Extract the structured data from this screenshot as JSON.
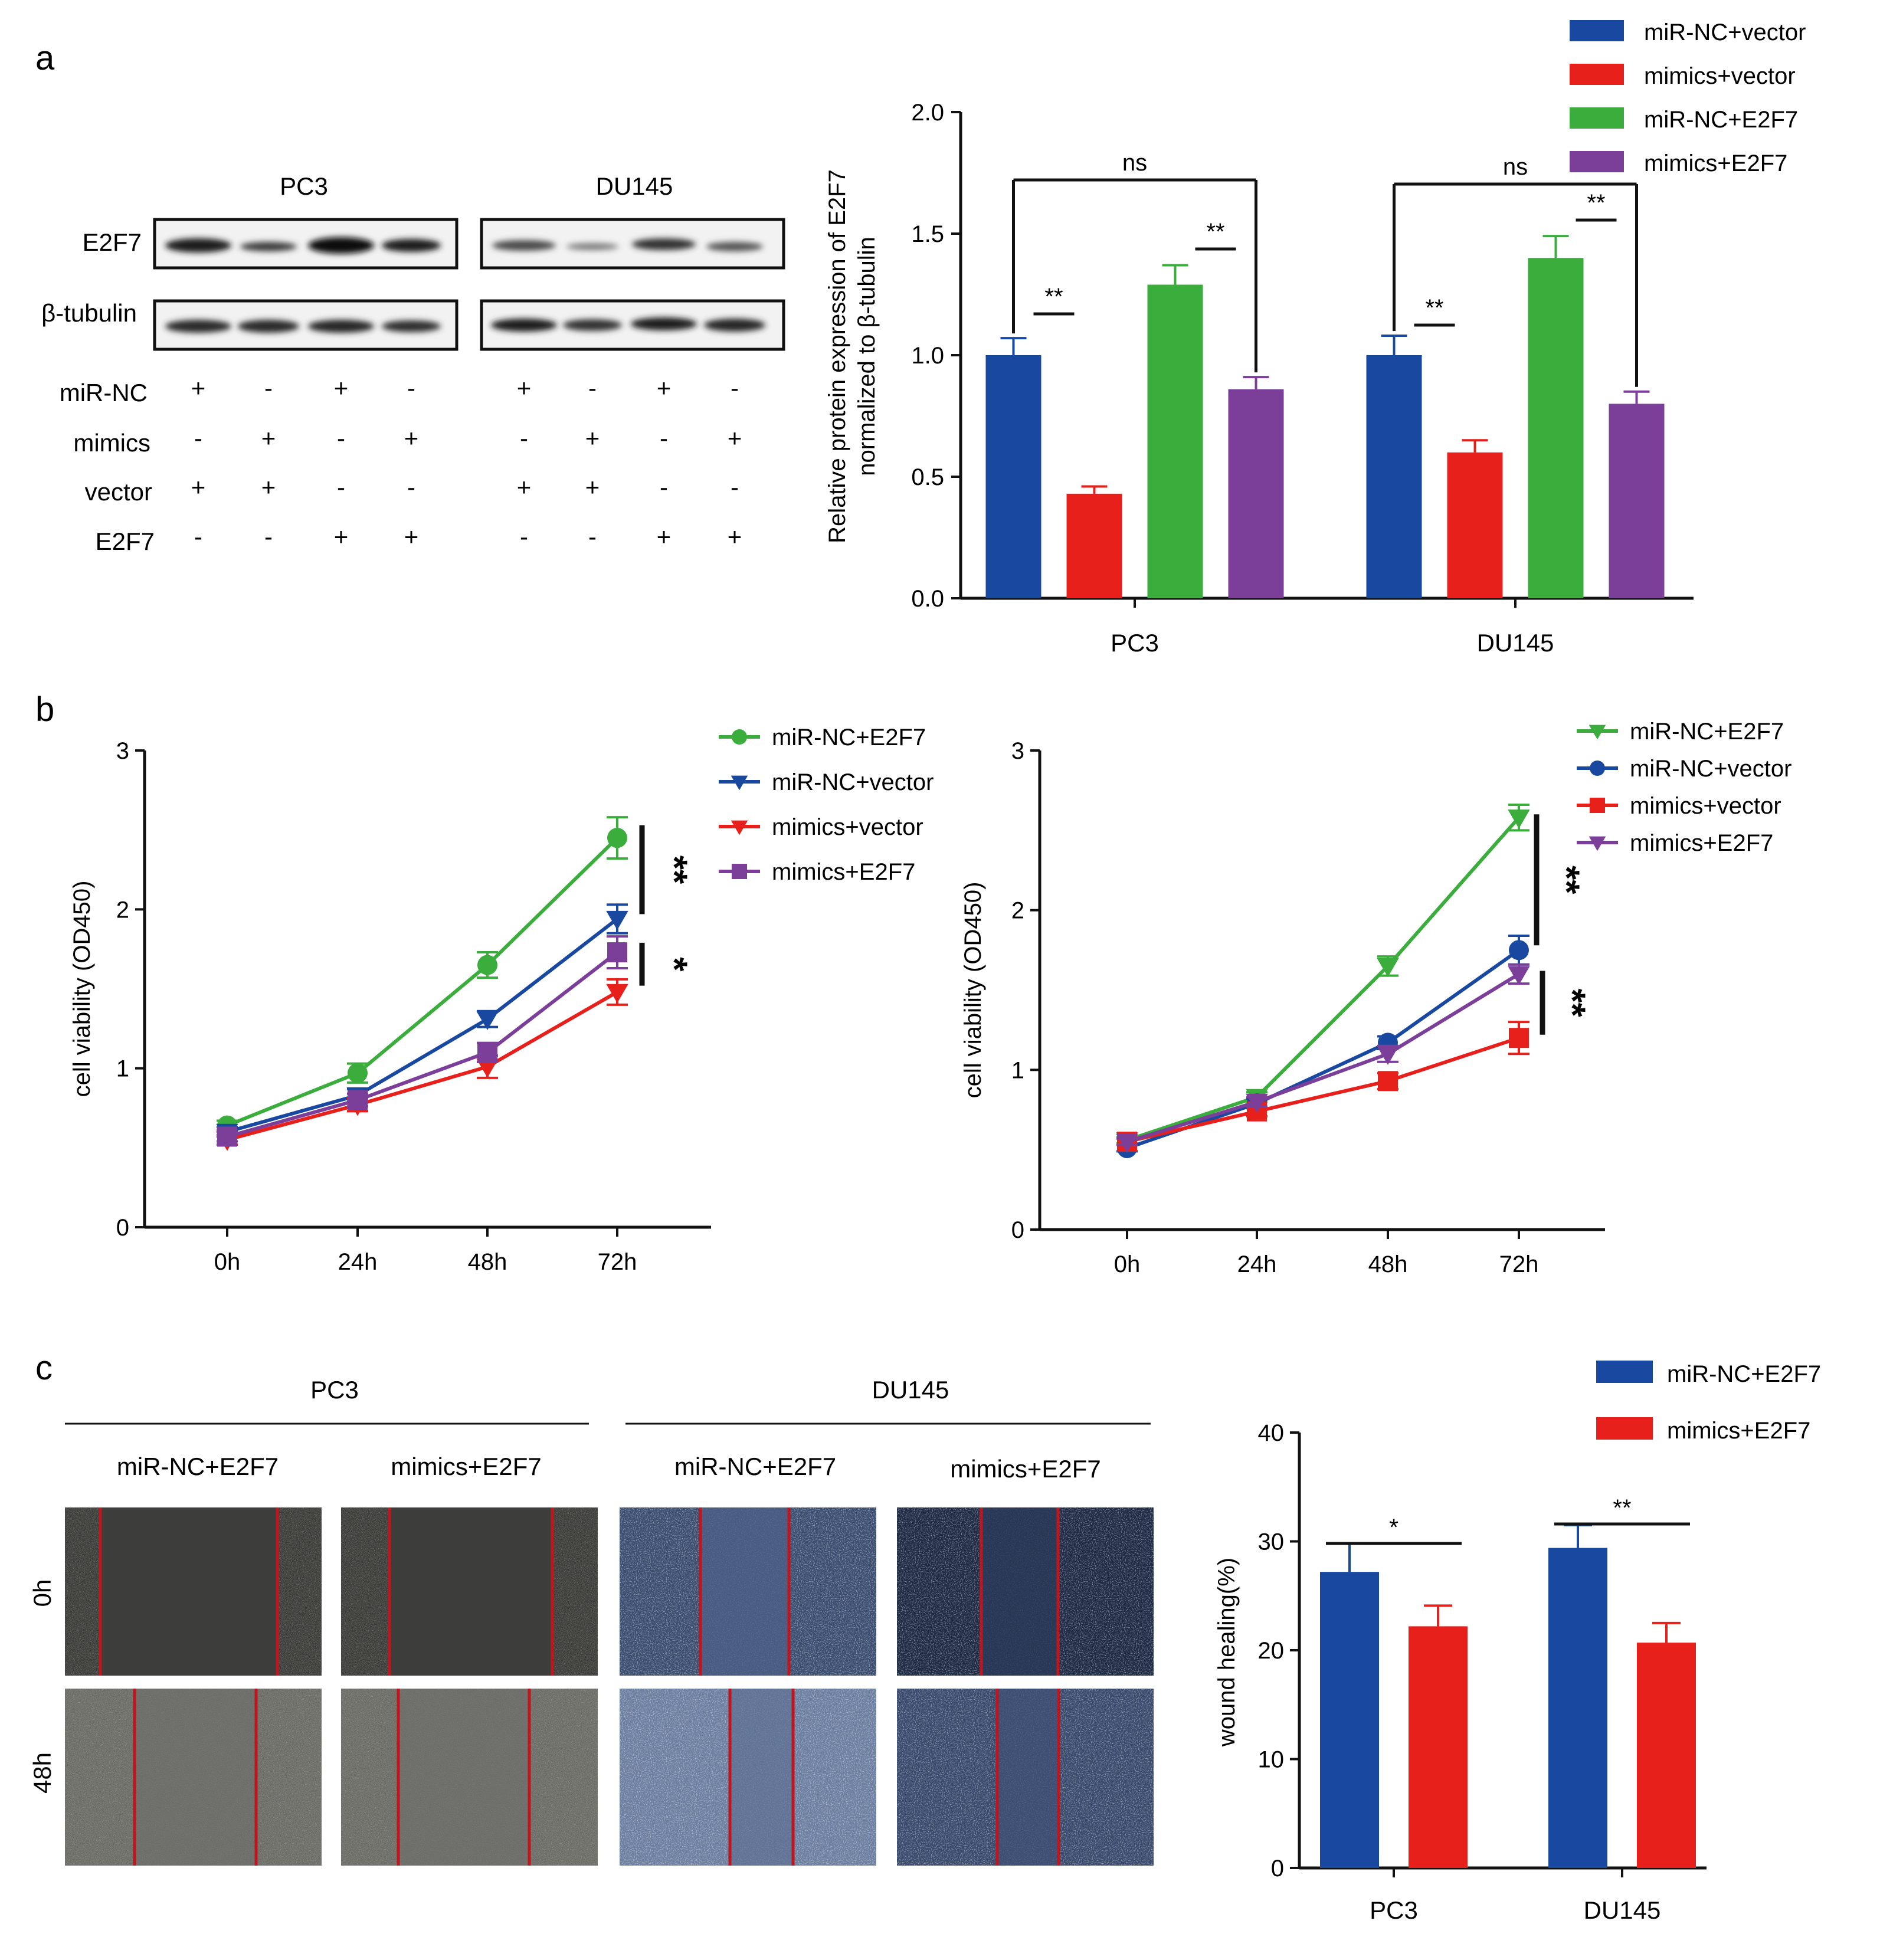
{
  "colors": {
    "blue": "#1848a0",
    "red": "#e8201c",
    "green": "#3aad3c",
    "purple": "#7c3f99",
    "axis": "#111111"
  },
  "panels": {
    "a": "a",
    "b": "b",
    "c": "c"
  },
  "blot": {
    "cells": [
      "PC3",
      "DU145"
    ],
    "proteins": [
      "E2F7",
      "β-tubulin"
    ],
    "rows": [
      {
        "label": "miR-NC",
        "signs": [
          "+",
          "-",
          "+",
          "-",
          "+",
          "-",
          "+",
          "-"
        ]
      },
      {
        "label": "mimics",
        "signs": [
          "-",
          "+",
          "-",
          "+",
          "-",
          "+",
          "-",
          "+"
        ]
      },
      {
        "label": "vector",
        "signs": [
          "+",
          "+",
          "-",
          "-",
          "+",
          "+",
          "-",
          "-"
        ]
      },
      {
        "label": "E2F7",
        "signs": [
          "-",
          "-",
          "+",
          "+",
          "-",
          "-",
          "+",
          "+"
        ]
      }
    ]
  },
  "scratch": {
    "cells": [
      "PC3",
      "DU145"
    ],
    "groups": [
      "miR-NC+E2F7",
      "mimics+E2F7",
      "miR-NC+E2F7",
      "mimics+E2F7"
    ],
    "times": [
      "0h",
      "48h"
    ]
  },
  "chart_data": [
    {
      "id": "a",
      "type": "bar",
      "ylabel": "Relative protein expression of E2F7 normalized to β-tubulin",
      "ylabel_lines": [
        "Relative protein expression of E2F7",
        "normalized to β-tubulin"
      ],
      "ylim": [
        0,
        2.0
      ],
      "yticks": [
        "0.0",
        "0.5",
        "1.0",
        "1.5",
        "2.0"
      ],
      "categories": [
        "PC3",
        "DU145"
      ],
      "series": [
        {
          "name": "miR-NC+vector",
          "color": "#1848a0",
          "values": [
            1.0,
            1.0
          ],
          "errors": [
            0.07,
            0.08
          ]
        },
        {
          "name": "mimics+vector",
          "color": "#e8201c",
          "values": [
            0.43,
            0.6
          ],
          "errors": [
            0.03,
            0.05
          ]
        },
        {
          "name": "miR-NC+E2F7",
          "color": "#3aad3c",
          "values": [
            1.29,
            1.4
          ],
          "errors": [
            0.08,
            0.09
          ]
        },
        {
          "name": "mimics+E2F7",
          "color": "#7c3f99",
          "values": [
            0.86,
            0.8
          ],
          "errors": [
            0.05,
            0.05
          ]
        }
      ],
      "annotations": [
        {
          "category": "PC3",
          "from": "miR-NC+vector",
          "to": "mimics+E2F7",
          "text": "ns"
        },
        {
          "category": "PC3",
          "from": "miR-NC+vector",
          "to": "mimics+vector",
          "text": "**"
        },
        {
          "category": "PC3",
          "from": "miR-NC+E2F7",
          "to": "mimics+E2F7",
          "text": "**"
        },
        {
          "category": "DU145",
          "from": "miR-NC+vector",
          "to": "mimics+E2F7",
          "text": "ns"
        },
        {
          "category": "DU145",
          "from": "miR-NC+vector",
          "to": "mimics+vector",
          "text": "**"
        },
        {
          "category": "DU145",
          "from": "miR-NC+E2F7",
          "to": "mimics+E2F7",
          "text": "**"
        }
      ]
    },
    {
      "id": "b-left",
      "type": "line",
      "ylabel": "cell viability (OD450)",
      "ylim": [
        0,
        3
      ],
      "yticks": [
        "0",
        "1",
        "2",
        "3"
      ],
      "x": [
        "0h",
        "24h",
        "48h",
        "72h"
      ],
      "legend_order": [
        "miR-NC+E2F7",
        "miR-NC+vector",
        "mimics+vector",
        "mimics+E2F7"
      ],
      "series": [
        {
          "name": "miR-NC+E2F7",
          "color": "#3aad3c",
          "marker": "circle",
          "values": [
            0.64,
            0.97,
            1.65,
            2.45
          ],
          "errors": [
            0.03,
            0.06,
            0.08,
            0.13
          ]
        },
        {
          "name": "miR-NC+vector",
          "color": "#1848a0",
          "marker": "triangle-down",
          "values": [
            0.6,
            0.83,
            1.31,
            1.94
          ],
          "errors": [
            0.03,
            0.04,
            0.05,
            0.09
          ]
        },
        {
          "name": "mimics+vector",
          "color": "#e8201c",
          "marker": "triangle-down",
          "values": [
            0.55,
            0.77,
            1.01,
            1.48
          ],
          "errors": [
            0.03,
            0.04,
            0.07,
            0.08
          ]
        },
        {
          "name": "mimics+E2F7",
          "color": "#7c3f99",
          "marker": "square",
          "values": [
            0.57,
            0.8,
            1.1,
            1.73
          ],
          "errors": [
            0.03,
            0.04,
            0.06,
            0.1
          ]
        }
      ],
      "significance": [
        {
          "from": 2.53,
          "to": 1.97,
          "text": "**"
        },
        {
          "from": 1.79,
          "to": 1.52,
          "text": "*"
        }
      ]
    },
    {
      "id": "b-right",
      "type": "line",
      "ylabel": "cell viability (OD450)",
      "ylim": [
        0,
        3
      ],
      "yticks": [
        "0",
        "1",
        "2",
        "3"
      ],
      "x": [
        "0h",
        "24h",
        "48h",
        "72h"
      ],
      "legend_order": [
        "miR-NC+E2F7",
        "miR-NC+vector",
        "mimics+vector",
        "mimics+E2F7"
      ],
      "series": [
        {
          "name": "miR-NC+E2F7",
          "color": "#3aad3c",
          "marker": "triangle-down",
          "values": [
            0.56,
            0.83,
            1.65,
            2.58
          ],
          "errors": [
            0.02,
            0.03,
            0.06,
            0.08
          ]
        },
        {
          "name": "miR-NC+vector",
          "color": "#1848a0",
          "marker": "circle",
          "values": [
            0.51,
            0.79,
            1.17,
            1.75
          ],
          "errors": [
            0.02,
            0.03,
            0.04,
            0.09
          ]
        },
        {
          "name": "mimics+vector",
          "color": "#e8201c",
          "marker": "square",
          "values": [
            0.55,
            0.74,
            0.93,
            1.2
          ],
          "errors": [
            0.02,
            0.03,
            0.05,
            0.1
          ]
        },
        {
          "name": "mimics+E2F7",
          "color": "#7c3f99",
          "marker": "triangle-down",
          "values": [
            0.55,
            0.8,
            1.1,
            1.6
          ],
          "errors": [
            0.02,
            0.03,
            0.05,
            0.06
          ]
        }
      ],
      "significance": [
        {
          "from": 2.6,
          "to": 1.78,
          "text": "**"
        },
        {
          "from": 1.62,
          "to": 1.22,
          "text": "**"
        }
      ]
    },
    {
      "id": "c",
      "type": "bar",
      "ylabel": "wound healing(%)",
      "ylim": [
        0,
        40
      ],
      "yticks": [
        "0",
        "10",
        "20",
        "30",
        "40"
      ],
      "categories": [
        "PC3",
        "DU145"
      ],
      "series": [
        {
          "name": "miR-NC+E2F7",
          "color": "#1848a0",
          "values": [
            27.2,
            29.4
          ],
          "errors": [
            2.6,
            2.1
          ]
        },
        {
          "name": "mimics+E2F7",
          "color": "#e8201c",
          "values": [
            22.2,
            20.7
          ],
          "errors": [
            1.9,
            1.8
          ]
        }
      ],
      "annotations": [
        {
          "category": "PC3",
          "text": "*"
        },
        {
          "category": "DU145",
          "text": "**"
        }
      ]
    }
  ]
}
